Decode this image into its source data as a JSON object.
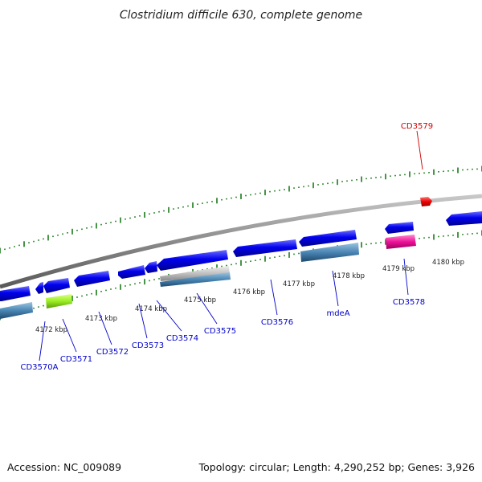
{
  "title": "Clostridium difficile 630, complete genome",
  "footer": {
    "accession": "Accession: NC_009089",
    "summary": "Topology: circular; Length: 4,290,252 bp; Genes: 3,926"
  },
  "ticks": [
    "4172 kbp",
    "4173 kbp",
    "4174 kbp",
    "4175 kbp",
    "4176 kbp",
    "4177 kbp",
    "4178 kbp",
    "4179 kbp",
    "4180 kbp"
  ],
  "genes": [
    "CD3570A",
    "CD3571",
    "CD3572",
    "CD3573",
    "CD3574",
    "CD3575",
    "CD3576",
    "mdeA",
    "CD3578",
    "CD3579"
  ],
  "colors": {
    "forward_cds": "#0000ee",
    "reverse_cds": "#4a86b4",
    "backbone": "#8a8a8a",
    "tick_mark": "#1a7a1a",
    "label_blue": "#0000cc",
    "label_red": "#cc0000",
    "gene_green": "#99ee22",
    "gene_magenta": "#ee1199",
    "gene_red": "#ee0000",
    "gene_grey": "#c0c0c0"
  }
}
